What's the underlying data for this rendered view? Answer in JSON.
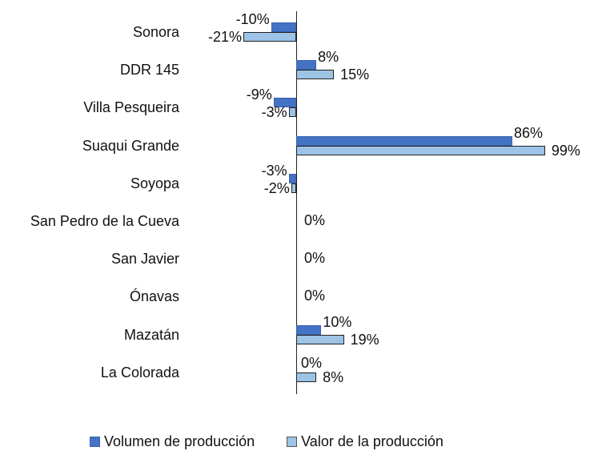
{
  "chart_data": {
    "type": "bar",
    "orientation": "horizontal",
    "title": "",
    "xlabel": "",
    "ylabel": "",
    "categories": [
      "Sonora",
      "DDR 145",
      "Villa Pesqueira",
      "Suaqui Grande",
      "Soyopa",
      "San Pedro de la Cueva",
      "San Javier",
      "Ónavas",
      "Mazatán",
      "La Colorada"
    ],
    "series": [
      {
        "name": "Volumen de producción",
        "color": "#4472C4",
        "values": [
          -10,
          8,
          -9,
          86,
          -3,
          0,
          0,
          0,
          10,
          0
        ],
        "labels": [
          "-10%",
          "8%",
          "-9%",
          "86%",
          "-3%",
          "",
          "",
          "",
          "10%",
          "0%"
        ]
      },
      {
        "name": "Valor de la producción",
        "color": "#9DC3E6",
        "values": [
          -21,
          15,
          -3,
          99,
          -2,
          0,
          0,
          0,
          19,
          8
        ],
        "labels": [
          "-21%",
          "15%",
          "-3%",
          "99%",
          "-2%",
          "0%",
          "0%",
          "0%",
          "19%",
          "8%"
        ]
      }
    ],
    "xlim": [
      -21,
      99
    ],
    "grid": false,
    "legend_position": "bottom",
    "value_format": "percent"
  },
  "legend": {
    "items": [
      {
        "label": "Volumen de producción",
        "color": "#4472C4"
      },
      {
        "label": "Valor de la producción",
        "color": "#9DC3E6"
      }
    ]
  }
}
